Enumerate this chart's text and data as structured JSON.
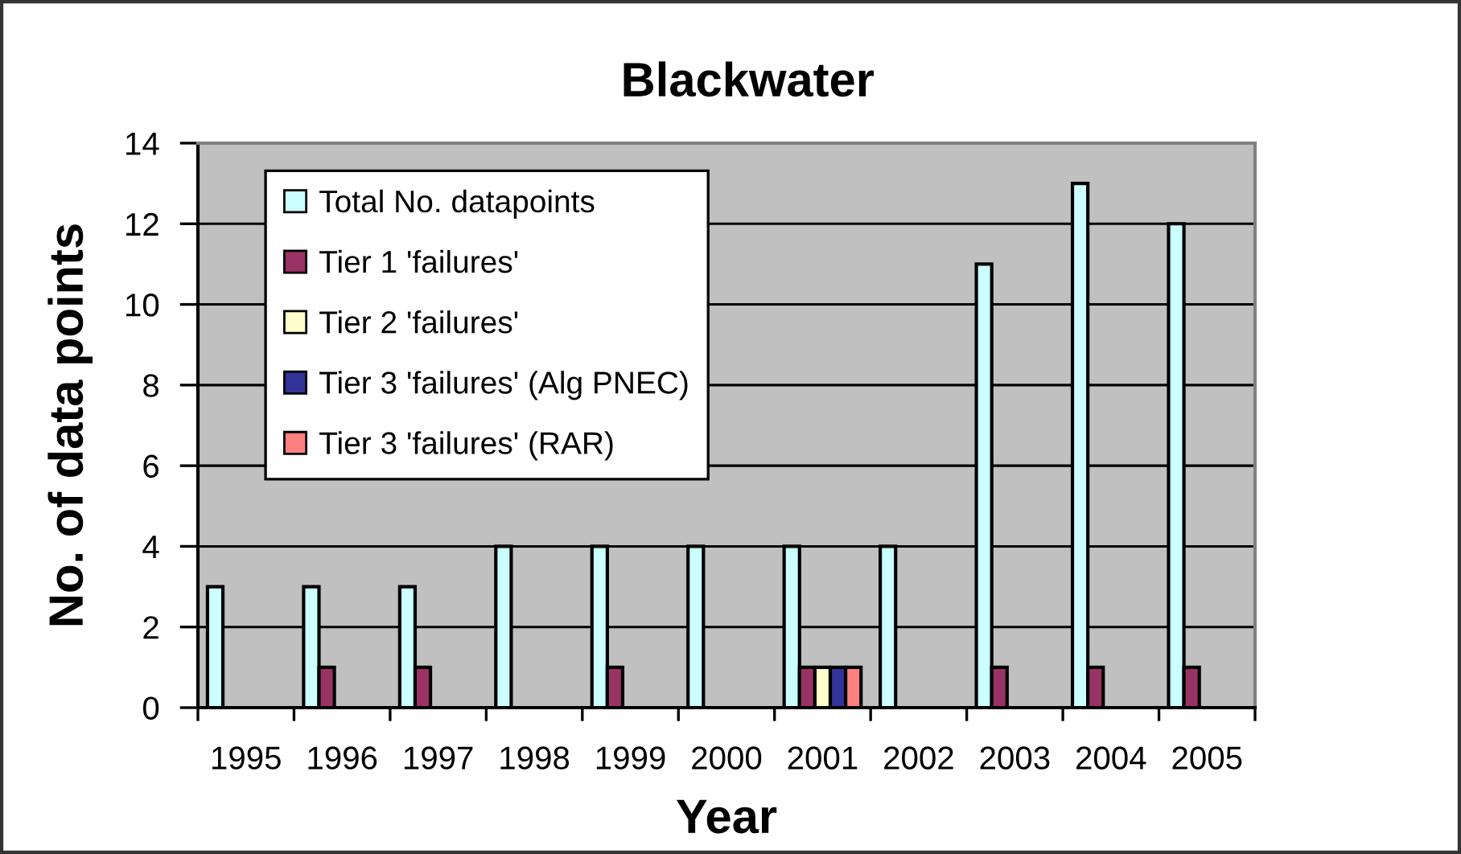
{
  "chart_data": {
    "type": "bar",
    "title": "Blackwater",
    "xlabel": "Year",
    "ylabel": "No. of data points",
    "categories": [
      "1995",
      "1996",
      "1997",
      "1998",
      "1999",
      "2000",
      "2001",
      "2002",
      "2003",
      "2004",
      "2005"
    ],
    "series": [
      {
        "name": "Total No. datapoints",
        "color": "#ccffff",
        "values": [
          3,
          3,
          3,
          4,
          4,
          4,
          4,
          4,
          11,
          13,
          12
        ]
      },
      {
        "name": "Tier 1 'failures'",
        "color": "#993366",
        "values": [
          0,
          1,
          1,
          0,
          1,
          0,
          1,
          0,
          1,
          1,
          1
        ]
      },
      {
        "name": "Tier 2 'failures'",
        "color": "#ffffcc",
        "values": [
          0,
          0,
          0,
          0,
          0,
          0,
          1,
          0,
          0,
          0,
          0
        ]
      },
      {
        "name": "Tier 3 'failures' (Alg PNEC)",
        "color": "#333399",
        "values": [
          0,
          0,
          0,
          0,
          0,
          0,
          1,
          0,
          0,
          0,
          0
        ]
      },
      {
        "name": "Tier 3 'failures' (RAR)",
        "color": "#ff8080",
        "values": [
          0,
          0,
          0,
          0,
          0,
          0,
          1,
          0,
          0,
          0,
          0
        ]
      }
    ],
    "ylim": [
      0,
      14
    ],
    "yticks": [
      0,
      2,
      4,
      6,
      8,
      10,
      12,
      14
    ],
    "grid": "y",
    "legend": "top left"
  }
}
